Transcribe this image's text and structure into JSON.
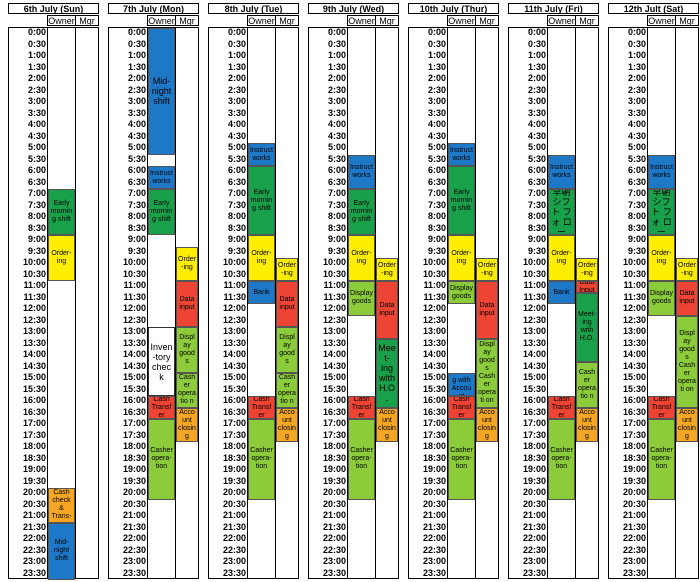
{
  "times": [
    "0:00",
    "0:30",
    "1:00",
    "1:30",
    "2:00",
    "2:30",
    "3:00",
    "3:30",
    "4:00",
    "4:30",
    "5:00",
    "5:30",
    "6:00",
    "6:30",
    "7:00",
    "7:30",
    "8:00",
    "8:30",
    "9:00",
    "9:30",
    "10:00",
    "10:30",
    "11:00",
    "11:30",
    "12:00",
    "12:30",
    "13:00",
    "13:30",
    "14:00",
    "14:30",
    "15:00",
    "15:30",
    "16:00",
    "16:30",
    "17:00",
    "17:30",
    "18:00",
    "18:30",
    "19:00",
    "19:30",
    "20:00",
    "20:30",
    "21:00",
    "21:30",
    "22:00",
    "22:30",
    "23:00",
    "23:30"
  ],
  "colors": {
    "blue": "#1e78c8",
    "green": "#18a04a",
    "yellow": "#ffee00",
    "red": "#ee4433",
    "lightgreen": "#8ccc3a",
    "orange": "#f5a623",
    "white": "#ffffff"
  },
  "days": [
    {
      "title": "6th July (Sun)",
      "owner_label": "Owner",
      "mgr_label": "Mgr",
      "owner": [
        {
          "start": 14,
          "end": 18,
          "color": "green",
          "text": "Early mornin g shift"
        },
        {
          "start": 18,
          "end": 22,
          "color": "yellow",
          "text": "Order- ing"
        },
        {
          "start": 40,
          "end": 43,
          "color": "orange",
          "text": "Cash check & Trans-"
        },
        {
          "start": 43,
          "end": 48,
          "color": "blue",
          "text": "Mid- night shift"
        }
      ],
      "mgr": []
    },
    {
      "title": "7th July (Mon)",
      "owner_label": "Owner",
      "mgr_label": "Mgr",
      "owner": [
        {
          "start": 0,
          "end": 11,
          "color": "blue",
          "text": "Mid- night shift",
          "big": true
        },
        {
          "start": 12,
          "end": 14,
          "color": "blue",
          "text": "Instruct works"
        },
        {
          "start": 14,
          "end": 18,
          "color": "green",
          "text": "Early mornin g shift"
        },
        {
          "start": 26,
          "end": 32,
          "color": "white",
          "text": "Inven -tory check",
          "big": true
        },
        {
          "start": 32,
          "end": 34,
          "color": "red",
          "text": "Cash Transfer"
        },
        {
          "start": 34,
          "end": 41,
          "color": "lightgreen",
          "text": "Casher opera- tion"
        }
      ],
      "mgr": [
        {
          "start": 19,
          "end": 22,
          "color": "yellow",
          "text": "Order-ing"
        },
        {
          "start": 22,
          "end": 26,
          "color": "red",
          "text": "Data input"
        },
        {
          "start": 26,
          "end": 30,
          "color": "lightgreen",
          "text": "Display goods"
        },
        {
          "start": 30,
          "end": 33,
          "color": "lightgreen",
          "text": "Casher operatio n"
        },
        {
          "start": 33,
          "end": 36,
          "color": "orange",
          "text": "Account closing"
        }
      ]
    },
    {
      "title": "8th July (Tue)",
      "owner_label": "Owner",
      "mgr_label": "Mgr",
      "owner": [
        {
          "start": 10,
          "end": 12,
          "color": "blue",
          "text": "Instruct works"
        },
        {
          "start": 12,
          "end": 18,
          "color": "green",
          "text": "Early mornin g shift"
        },
        {
          "start": 18,
          "end": 22,
          "color": "yellow",
          "text": "Order- ing"
        },
        {
          "start": 22,
          "end": 24,
          "color": "blue",
          "text": "Bank"
        },
        {
          "start": 32,
          "end": 34,
          "color": "red",
          "text": "Cash Transfer"
        },
        {
          "start": 34,
          "end": 41,
          "color": "lightgreen",
          "text": "Casher opera- tion"
        }
      ],
      "mgr": [
        {
          "start": 20,
          "end": 22,
          "color": "yellow",
          "text": "Order-ing"
        },
        {
          "start": 22,
          "end": 26,
          "color": "red",
          "text": "Data input"
        },
        {
          "start": 26,
          "end": 30,
          "color": "lightgreen",
          "text": "Display goods"
        },
        {
          "start": 30,
          "end": 33,
          "color": "lightgreen",
          "text": "Casher operatio n"
        },
        {
          "start": 33,
          "end": 36,
          "color": "orange",
          "text": "Account closing"
        }
      ]
    },
    {
      "title": "9th July (Wed)",
      "owner_label": "Owner",
      "mgr_label": "Mgr",
      "owner": [
        {
          "start": 11,
          "end": 14,
          "color": "blue",
          "text": "Instruct works"
        },
        {
          "start": 14,
          "end": 18,
          "color": "green",
          "text": "Early mornin g shift"
        },
        {
          "start": 18,
          "end": 22,
          "color": "yellow",
          "text": "Order- ing"
        },
        {
          "start": 22,
          "end": 25,
          "color": "lightgreen",
          "text": "Display goods"
        },
        {
          "start": 32,
          "end": 34,
          "color": "red",
          "text": "Cash Transfer"
        },
        {
          "start": 34,
          "end": 41,
          "color": "lightgreen",
          "text": "Casher opera- tion"
        }
      ],
      "mgr": [
        {
          "start": 20,
          "end": 22,
          "color": "yellow",
          "text": "Order-ing"
        },
        {
          "start": 22,
          "end": 27,
          "color": "red",
          "text": "Data input"
        },
        {
          "start": 27,
          "end": 33,
          "color": "green",
          "text": "Meet- ing with H.O.",
          "big": true
        },
        {
          "start": 33,
          "end": 36,
          "color": "orange",
          "text": "Account closing"
        }
      ]
    },
    {
      "title": "10th July (Thur)",
      "owner_label": "Owner",
      "mgr_label": "Mgr",
      "owner": [
        {
          "start": 10,
          "end": 12,
          "color": "blue",
          "text": "Instruct works"
        },
        {
          "start": 12,
          "end": 18,
          "color": "green",
          "text": "Early mornin g shift"
        },
        {
          "start": 18,
          "end": 22,
          "color": "yellow",
          "text": "Order- ing"
        },
        {
          "start": 22,
          "end": 24,
          "color": "lightgreen",
          "text": "Display goods"
        },
        {
          "start": 30,
          "end": 32,
          "color": "blue",
          "text": "Meeting with Account"
        },
        {
          "start": 32,
          "end": 34,
          "color": "red",
          "text": "Cash Transfer"
        },
        {
          "start": 34,
          "end": 41,
          "color": "lightgreen",
          "text": "Casher opera- tion"
        }
      ],
      "mgr": [
        {
          "start": 20,
          "end": 22,
          "color": "yellow",
          "text": "Order-ing"
        },
        {
          "start": 22,
          "end": 27,
          "color": "red",
          "text": "Data input"
        },
        {
          "start": 27,
          "end": 33,
          "color": "lightgreen",
          "text": "Display goods Casher operati on"
        },
        {
          "start": 33,
          "end": 36,
          "color": "orange",
          "text": "Account closing"
        }
      ]
    },
    {
      "title": "11th July (Fri)",
      "owner_label": "Owner",
      "mgr_label": "Mgr",
      "owner": [
        {
          "start": 11,
          "end": 14,
          "color": "blue",
          "text": "Instruct works"
        },
        {
          "start": 14,
          "end": 18,
          "color": "green",
          "text": "早朝 シフト フォ ロー",
          "big": true
        },
        {
          "start": 18,
          "end": 22,
          "color": "yellow",
          "text": "Order- ing"
        },
        {
          "start": 22,
          "end": 24,
          "color": "blue",
          "text": "Bank"
        },
        {
          "start": 32,
          "end": 34,
          "color": "red",
          "text": "Cash Transfer"
        },
        {
          "start": 34,
          "end": 41,
          "color": "lightgreen",
          "text": "Casher opera- tion"
        }
      ],
      "mgr": [
        {
          "start": 20,
          "end": 22,
          "color": "yellow",
          "text": "Order-ing"
        },
        {
          "start": 22,
          "end": 23,
          "color": "red",
          "text": "Data Input"
        },
        {
          "start": 23,
          "end": 29,
          "color": "green",
          "text": "Meet- ing with H.O."
        },
        {
          "start": 29,
          "end": 33,
          "color": "lightgreen",
          "text": "Casher operatio n"
        },
        {
          "start": 33,
          "end": 36,
          "color": "orange",
          "text": "Account closing"
        }
      ]
    },
    {
      "title": "12th Jult (Sat)",
      "owner_label": "Owner",
      "mgr_label": "Mgr",
      "owner": [
        {
          "start": 11,
          "end": 14,
          "color": "blue",
          "text": "Instruct works"
        },
        {
          "start": 14,
          "end": 18,
          "color": "green",
          "text": "早朝 シフト フォ ロー",
          "big": true
        },
        {
          "start": 18,
          "end": 22,
          "color": "yellow",
          "text": "Order- ing"
        },
        {
          "start": 22,
          "end": 25,
          "color": "lightgreen",
          "text": "Display goods"
        },
        {
          "start": 32,
          "end": 34,
          "color": "red",
          "text": "Cash Transfer"
        },
        {
          "start": 34,
          "end": 41,
          "color": "lightgreen",
          "text": "Casher opera- tion"
        }
      ],
      "mgr": [
        {
          "start": 20,
          "end": 22,
          "color": "yellow",
          "text": "Order-ing"
        },
        {
          "start": 22,
          "end": 25,
          "color": "red",
          "text": "Data input"
        },
        {
          "start": 25,
          "end": 33,
          "color": "lightgreen",
          "text": "Display goods Casher operati on"
        },
        {
          "start": 33,
          "end": 36,
          "color": "orange",
          "text": "Account closing"
        }
      ]
    }
  ]
}
